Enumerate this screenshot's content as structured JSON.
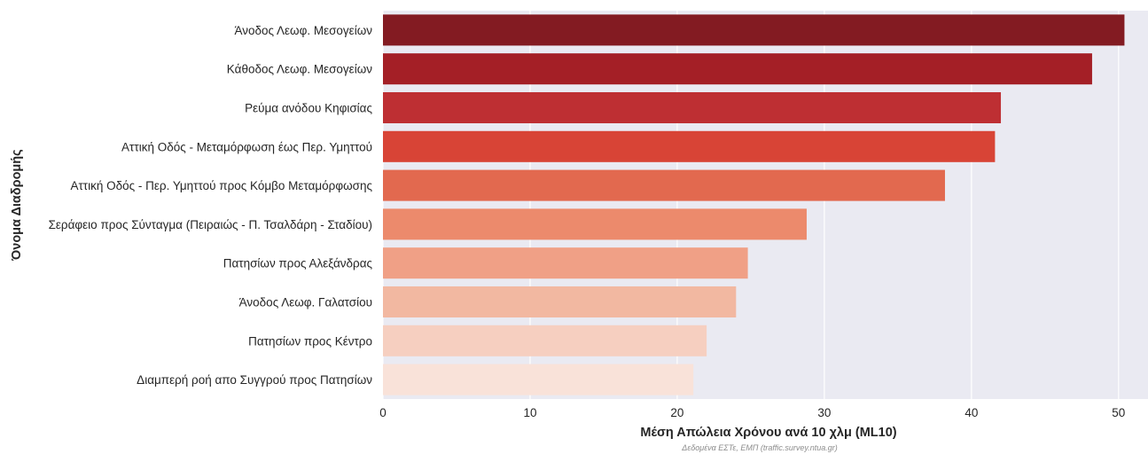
{
  "chart_data": {
    "type": "bar",
    "orientation": "horizontal",
    "xlabel": "Μέση Απώλεια Χρόνου ανά 10 χλμ (ML10)",
    "ylabel": "Όνομα Διαδρομής",
    "source_note": "Δεδομένα ΕΣΤε, ΕΜΠ (traffic.survey.ntua.gr)",
    "xlim": [
      0,
      52
    ],
    "xticks": [
      0,
      10,
      20,
      30,
      40,
      50
    ],
    "grid": true,
    "background": "#eaeaf2",
    "categories": [
      "Άνοδος Λεωφ. Μεσογείων",
      "Κάθοδος Λεωφ. Μεσογείων",
      "Ρεύμα ανόδου Κηφισίας",
      "Αττική Οδός - Μεταμόρφωση έως Περ. Υμηττού",
      "Αττική Οδός - Περ. Υμηττού προς Κόμβο Μεταμόρφωσης",
      "Σεράφειο προς Σύνταγμα (Πειραιώς - Π. Τσαλδάρη - Σταδίου)",
      "Πατησίων προς Αλεξάνδρας",
      "Άνοδος Λεωφ. Γαλατσίου",
      "Πατησίων προς Κέντρο",
      "Διαμπερή ροή απο Συγγρού προς Πατησίων"
    ],
    "values": [
      50.4,
      48.2,
      42.0,
      41.6,
      38.2,
      28.8,
      24.8,
      24.0,
      22.0,
      21.1
    ],
    "colors": [
      "#831b22",
      "#a41f26",
      "#be2f33",
      "#d84436",
      "#e2694f",
      "#ec8a6c",
      "#f0a086",
      "#f2b8a1",
      "#f6cfc0",
      "#f9e2d9"
    ]
  }
}
